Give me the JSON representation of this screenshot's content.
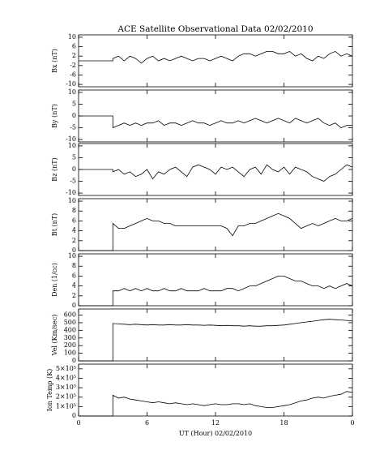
{
  "title": "ACE Satellite Observational Data  02/02/2010",
  "xlabel": "UT (Hour)  02/02/2010",
  "chart_data": [
    {
      "type": "line",
      "ylabel": "Bx (nT)",
      "color": "#000000",
      "x": [
        0,
        3,
        3,
        3.5,
        4,
        4.5,
        5,
        5.5,
        6,
        6.5,
        7,
        7.5,
        8,
        8.5,
        9,
        9.5,
        10,
        10.5,
        11,
        11.5,
        12,
        12.5,
        13,
        13.5,
        14,
        14.5,
        15,
        15.5,
        16,
        16.5,
        17,
        17.5,
        18,
        18.5,
        19,
        19.5,
        20,
        20.5,
        21,
        21.5,
        22,
        22.5,
        23,
        23.5,
        24
      ],
      "values": [
        0,
        0,
        1,
        2,
        0,
        2,
        1,
        -1,
        1,
        2,
        0,
        1,
        0,
        1,
        2,
        1,
        0,
        1,
        1,
        0,
        1,
        2,
        1,
        0,
        2,
        3,
        3,
        2,
        3,
        4,
        4,
        3,
        3,
        4,
        2,
        3,
        1,
        0,
        2,
        1,
        3,
        4,
        2,
        3,
        2
      ],
      "xlim": [
        0,
        24
      ],
      "ylim": [
        -11,
        11
      ],
      "yticks": [
        10,
        6,
        2,
        -2,
        -6,
        -10
      ]
    },
    {
      "type": "line",
      "ylabel": "By (nT)",
      "color": "#000000",
      "x": [
        0,
        3,
        3,
        3.5,
        4,
        4.5,
        5,
        5.5,
        6,
        6.5,
        7,
        7.5,
        8,
        8.5,
        9,
        9.5,
        10,
        10.5,
        11,
        11.5,
        12,
        12.5,
        13,
        13.5,
        14,
        14.5,
        15,
        15.5,
        16,
        16.5,
        17,
        17.5,
        18,
        18.5,
        19,
        19.5,
        20,
        20.5,
        21,
        21.5,
        22,
        22.5,
        23,
        23.5,
        24
      ],
      "values": [
        0,
        0,
        -5,
        -4,
        -3,
        -4,
        -3,
        -4,
        -3,
        -3,
        -2,
        -4,
        -3,
        -3,
        -4,
        -3,
        -2,
        -3,
        -3,
        -4,
        -3,
        -2,
        -3,
        -3,
        -2,
        -3,
        -2,
        -1,
        -2,
        -3,
        -2,
        -1,
        -2,
        -3,
        -1,
        -2,
        -3,
        -2,
        -1,
        -3,
        -4,
        -3,
        -5,
        -4,
        -4
      ],
      "xlim": [
        0,
        24
      ],
      "ylim": [
        -11,
        11
      ],
      "yticks": [
        10,
        5,
        0,
        -5,
        -10
      ]
    },
    {
      "type": "line",
      "ylabel": "Bz (nT)",
      "color": "#000000",
      "x": [
        0,
        3,
        3,
        3.5,
        4,
        4.5,
        5,
        5.5,
        6,
        6.5,
        7,
        7.5,
        8,
        8.5,
        9,
        9.5,
        10,
        10.5,
        11,
        11.5,
        12,
        12.5,
        13,
        13.5,
        14,
        14.5,
        15,
        15.5,
        16,
        16.5,
        17,
        17.5,
        18,
        18.5,
        19,
        19.5,
        20,
        20.5,
        21,
        21.5,
        22,
        22.5,
        23,
        23.5,
        24
      ],
      "values": [
        0,
        0,
        -1,
        0,
        -2,
        -1,
        -3,
        -2,
        0,
        -4,
        -1,
        -2,
        0,
        1,
        -1,
        -3,
        1,
        2,
        1,
        0,
        -2,
        1,
        0,
        1,
        -1,
        -3,
        0,
        1,
        -2,
        2,
        0,
        -1,
        1,
        -2,
        1,
        0,
        -1,
        -3,
        -4,
        -5,
        -3,
        -2,
        0,
        2,
        1
      ],
      "xlim": [
        0,
        24
      ],
      "ylim": [
        -11,
        11
      ],
      "yticks": [
        10,
        5,
        0,
        -5,
        -10
      ]
    },
    {
      "type": "line",
      "ylabel": "Bt (nT)",
      "color": "#000000",
      "x": [
        0,
        3,
        3,
        3.5,
        4,
        4.5,
        5,
        5.5,
        6,
        6.5,
        7,
        7.5,
        8,
        8.5,
        9,
        9.5,
        10,
        10.5,
        11,
        11.5,
        12,
        12.5,
        13,
        13.5,
        14,
        14.5,
        15,
        15.5,
        16,
        16.5,
        17,
        17.5,
        18,
        18.5,
        19,
        19.5,
        20,
        20.5,
        21,
        21.5,
        22,
        22.5,
        23,
        23.5,
        24
      ],
      "values": [
        0,
        0,
        5.5,
        4.5,
        4.5,
        5,
        5.5,
        6,
        6.5,
        6,
        6,
        5.5,
        5.5,
        5,
        5,
        5,
        5,
        5,
        5,
        5,
        5,
        5,
        4.5,
        3,
        5,
        5,
        5.5,
        5.5,
        6,
        6.5,
        7,
        7.5,
        7,
        6.5,
        5.5,
        4.5,
        5,
        5.5,
        5,
        5.5,
        6,
        6.5,
        6,
        6,
        6.5
      ],
      "xlim": [
        0,
        24
      ],
      "ylim": [
        0,
        10.5
      ],
      "yticks": [
        0,
        2,
        4,
        6,
        8,
        10
      ]
    },
    {
      "type": "line",
      "ylabel": "Den (1/cc)",
      "color": "#000000",
      "x": [
        0,
        3,
        3,
        3.5,
        4,
        4.5,
        5,
        5.5,
        6,
        6.5,
        7,
        7.5,
        8,
        8.5,
        9,
        9.5,
        10,
        10.5,
        11,
        11.5,
        12,
        12.5,
        13,
        13.5,
        14,
        14.5,
        15,
        15.5,
        16,
        16.5,
        17,
        17.5,
        18,
        18.5,
        19,
        19.5,
        20,
        20.5,
        21,
        21.5,
        22,
        22.5,
        23,
        23.5,
        24
      ],
      "values": [
        0,
        0,
        3,
        3,
        3.5,
        3,
        3.5,
        3,
        3.5,
        3,
        3,
        3.5,
        3,
        3,
        3.5,
        3,
        3,
        3,
        3.5,
        3,
        3,
        3,
        3.5,
        3.5,
        3,
        3.5,
        4,
        4,
        4.5,
        5,
        5.5,
        6,
        6,
        5.5,
        5,
        5,
        4.5,
        4,
        4,
        3.5,
        4,
        3.5,
        4,
        4.5,
        4
      ],
      "xlim": [
        0,
        24
      ],
      "ylim": [
        0,
        10.5
      ],
      "yticks": [
        0,
        2,
        4,
        6,
        8,
        10
      ]
    },
    {
      "type": "line",
      "ylabel": "Vel (Km/sec)",
      "color": "#000000",
      "x": [
        0,
        3,
        3,
        3.5,
        4,
        4.5,
        5,
        5.5,
        6,
        6.5,
        7,
        7.5,
        8,
        8.5,
        9,
        9.5,
        10,
        10.5,
        11,
        11.5,
        12,
        12.5,
        13,
        13.5,
        14,
        14.5,
        15,
        15.5,
        16,
        16.5,
        17,
        17.5,
        18,
        18.5,
        19,
        19.5,
        20,
        20.5,
        21,
        21.5,
        22,
        22.5,
        23,
        23.5,
        24
      ],
      "values": [
        0,
        0,
        490,
        485,
        480,
        475,
        480,
        475,
        470,
        475,
        470,
        470,
        475,
        470,
        470,
        475,
        470,
        470,
        465,
        470,
        465,
        460,
        465,
        460,
        460,
        455,
        460,
        455,
        455,
        460,
        460,
        465,
        470,
        480,
        490,
        500,
        510,
        520,
        530,
        540,
        545,
        540,
        535,
        530,
        525
      ],
      "xlim": [
        0,
        24
      ],
      "ylim": [
        0,
        680
      ],
      "yticks": [
        0,
        100,
        200,
        300,
        400,
        500,
        600
      ]
    },
    {
      "type": "line",
      "ylabel": "Ion Temp (K)",
      "color": "#000000",
      "x": [
        0,
        3,
        3,
        3.5,
        4,
        4.5,
        5,
        5.5,
        6,
        6.5,
        7,
        7.5,
        8,
        8.5,
        9,
        9.5,
        10,
        10.5,
        11,
        11.5,
        12,
        12.5,
        13,
        13.5,
        14,
        14.5,
        15,
        15.5,
        16,
        16.5,
        17,
        17.5,
        18,
        18.5,
        19,
        19.5,
        20,
        20.5,
        21,
        21.5,
        22,
        22.5,
        23,
        23.5,
        24
      ],
      "values": [
        0,
        0,
        220000,
        190000,
        200000,
        180000,
        170000,
        160000,
        150000,
        140000,
        150000,
        140000,
        130000,
        140000,
        130000,
        120000,
        130000,
        120000,
        110000,
        120000,
        130000,
        120000,
        120000,
        130000,
        130000,
        120000,
        130000,
        110000,
        100000,
        90000,
        90000,
        100000,
        110000,
        120000,
        140000,
        160000,
        170000,
        190000,
        200000,
        190000,
        210000,
        220000,
        230000,
        260000,
        250000
      ],
      "xlim": [
        0,
        24
      ],
      "ylim": [
        0,
        550000
      ],
      "yticks": [
        0,
        {
          "value": 100000,
          "label": "1×10⁵"
        },
        {
          "value": 200000,
          "label": "2×10⁵"
        },
        {
          "value": 300000,
          "label": "3×10⁵"
        },
        {
          "value": 400000,
          "label": "4×10⁵"
        },
        {
          "value": 500000,
          "label": "5×10⁵"
        }
      ],
      "xticks": [
        0,
        6,
        12,
        18,
        {
          "value": 24,
          "label": "0"
        }
      ]
    }
  ]
}
